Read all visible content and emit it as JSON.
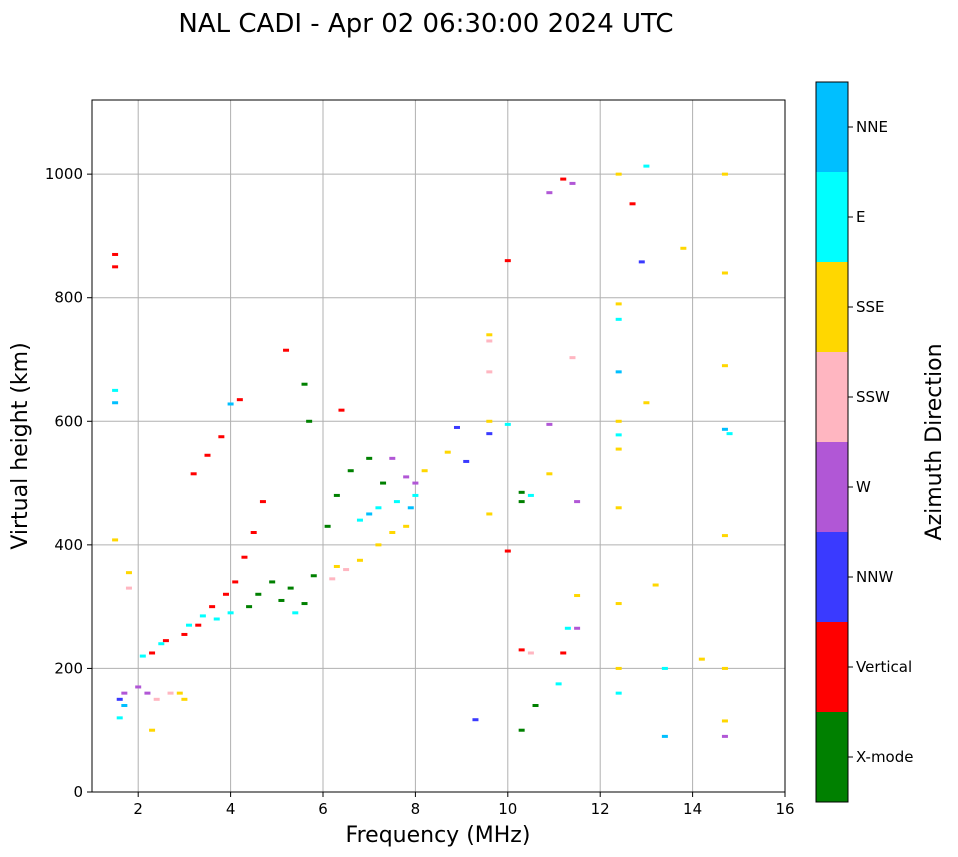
{
  "chart_data": {
    "type": "scatter",
    "title": "NAL CADI - Apr 02 06:30:00 2024 UTC",
    "xlabel": "Frequency (MHz)",
    "ylabel": "Virtual height (km)",
    "xlim": [
      1,
      16
    ],
    "ylim": [
      0,
      1120
    ],
    "xticks": [
      2,
      4,
      6,
      8,
      10,
      12,
      14,
      16
    ],
    "yticks": [
      0,
      200,
      400,
      600,
      800,
      1000
    ],
    "grid": true,
    "colorbar": {
      "title": "Azimuth Direction",
      "categories": [
        {
          "name": "X-mode",
          "color": "#008000"
        },
        {
          "name": "Vertical",
          "color": "#ff0000"
        },
        {
          "name": "NNW",
          "color": "#3a3aff"
        },
        {
          "name": "W",
          "color": "#b157d6"
        },
        {
          "name": "SSW",
          "color": "#ffb6c1"
        },
        {
          "name": "SSE",
          "color": "#ffd700"
        },
        {
          "name": "E",
          "color": "#00ffff"
        },
        {
          "name": "NNE",
          "color": "#00bfff"
        }
      ]
    },
    "series": [
      {
        "name": "X-mode",
        "points": [
          [
            4.4,
            300
          ],
          [
            4.6,
            320
          ],
          [
            4.9,
            340
          ],
          [
            5.1,
            310
          ],
          [
            5.3,
            330
          ],
          [
            5.6,
            305
          ],
          [
            5.8,
            350
          ],
          [
            6.1,
            430
          ],
          [
            6.3,
            480
          ],
          [
            6.6,
            520
          ],
          [
            7.0,
            540
          ],
          [
            7.3,
            500
          ],
          [
            10.3,
            485
          ],
          [
            10.3,
            470
          ],
          [
            10.6,
            140
          ],
          [
            10.3,
            100
          ],
          [
            5.6,
            660
          ],
          [
            5.7,
            600
          ]
        ]
      },
      {
        "name": "Vertical",
        "points": [
          [
            1.5,
            870
          ],
          [
            1.5,
            850
          ],
          [
            2.3,
            225
          ],
          [
            2.6,
            245
          ],
          [
            3.0,
            255
          ],
          [
            3.3,
            270
          ],
          [
            3.6,
            300
          ],
          [
            3.9,
            320
          ],
          [
            4.1,
            340
          ],
          [
            4.3,
            380
          ],
          [
            4.5,
            420
          ],
          [
            4.7,
            470
          ],
          [
            3.2,
            515
          ],
          [
            3.5,
            545
          ],
          [
            3.8,
            575
          ],
          [
            4.2,
            635
          ],
          [
            5.2,
            715
          ],
          [
            6.4,
            618
          ],
          [
            10.0,
            860
          ],
          [
            10.0,
            390
          ],
          [
            10.3,
            230
          ],
          [
            11.2,
            225
          ],
          [
            11.2,
            992
          ],
          [
            12.7,
            952
          ]
        ]
      },
      {
        "name": "NNW",
        "points": [
          [
            1.6,
            150
          ],
          [
            8.9,
            590
          ],
          [
            9.1,
            535
          ],
          [
            9.3,
            117
          ],
          [
            9.6,
            580
          ],
          [
            12.9,
            858
          ]
        ]
      },
      {
        "name": "W",
        "points": [
          [
            1.7,
            160
          ],
          [
            2.0,
            170
          ],
          [
            2.2,
            160
          ],
          [
            7.5,
            540
          ],
          [
            7.8,
            510
          ],
          [
            8.0,
            500
          ],
          [
            11.4,
            985
          ],
          [
            11.5,
            470
          ],
          [
            11.5,
            265
          ],
          [
            10.9,
            595
          ],
          [
            10.9,
            970
          ],
          [
            14.7,
            90
          ]
        ]
      },
      {
        "name": "SSW",
        "points": [
          [
            1.8,
            330
          ],
          [
            2.4,
            150
          ],
          [
            2.7,
            160
          ],
          [
            6.2,
            345
          ],
          [
            6.5,
            360
          ],
          [
            9.6,
            730
          ],
          [
            9.6,
            680
          ],
          [
            10.5,
            225
          ],
          [
            11.4,
            703
          ]
        ]
      },
      {
        "name": "SSE",
        "points": [
          [
            1.5,
            408
          ],
          [
            1.8,
            355
          ],
          [
            2.3,
            100
          ],
          [
            2.9,
            160
          ],
          [
            3.0,
            150
          ],
          [
            6.3,
            365
          ],
          [
            6.8,
            375
          ],
          [
            7.2,
            400
          ],
          [
            7.5,
            420
          ],
          [
            7.8,
            430
          ],
          [
            8.2,
            520
          ],
          [
            8.7,
            550
          ],
          [
            9.6,
            740
          ],
          [
            9.6,
            600
          ],
          [
            9.6,
            450
          ],
          [
            10.9,
            515
          ],
          [
            11.5,
            318
          ],
          [
            12.4,
            1000
          ],
          [
            12.4,
            790
          ],
          [
            12.4,
            600
          ],
          [
            12.4,
            555
          ],
          [
            12.4,
            460
          ],
          [
            12.4,
            305
          ],
          [
            12.4,
            200
          ],
          [
            13.2,
            335
          ],
          [
            13.0,
            630
          ],
          [
            13.8,
            880
          ],
          [
            14.2,
            215
          ],
          [
            14.7,
            1000
          ],
          [
            14.7,
            840
          ],
          [
            14.7,
            690
          ],
          [
            14.7,
            415
          ],
          [
            14.7,
            200
          ],
          [
            14.7,
            115
          ]
        ]
      },
      {
        "name": "E",
        "points": [
          [
            1.5,
            650
          ],
          [
            1.6,
            120
          ],
          [
            2.1,
            220
          ],
          [
            2.5,
            240
          ],
          [
            3.1,
            270
          ],
          [
            3.4,
            285
          ],
          [
            3.7,
            280
          ],
          [
            4.0,
            290
          ],
          [
            5.4,
            290
          ],
          [
            6.8,
            440
          ],
          [
            7.2,
            460
          ],
          [
            7.6,
            470
          ],
          [
            8.0,
            480
          ],
          [
            10.0,
            595
          ],
          [
            10.5,
            480
          ],
          [
            11.1,
            175
          ],
          [
            11.3,
            265
          ],
          [
            12.4,
            765
          ],
          [
            12.4,
            578
          ],
          [
            12.4,
            160
          ],
          [
            13.0,
            1013
          ],
          [
            13.4,
            200
          ],
          [
            14.8,
            580
          ]
        ]
      },
      {
        "name": "NNE",
        "points": [
          [
            1.5,
            630
          ],
          [
            1.7,
            140
          ],
          [
            4.0,
            628
          ],
          [
            7.0,
            450
          ],
          [
            7.9,
            460
          ],
          [
            12.4,
            680
          ],
          [
            13.4,
            90
          ],
          [
            14.7,
            587
          ]
        ]
      }
    ]
  }
}
